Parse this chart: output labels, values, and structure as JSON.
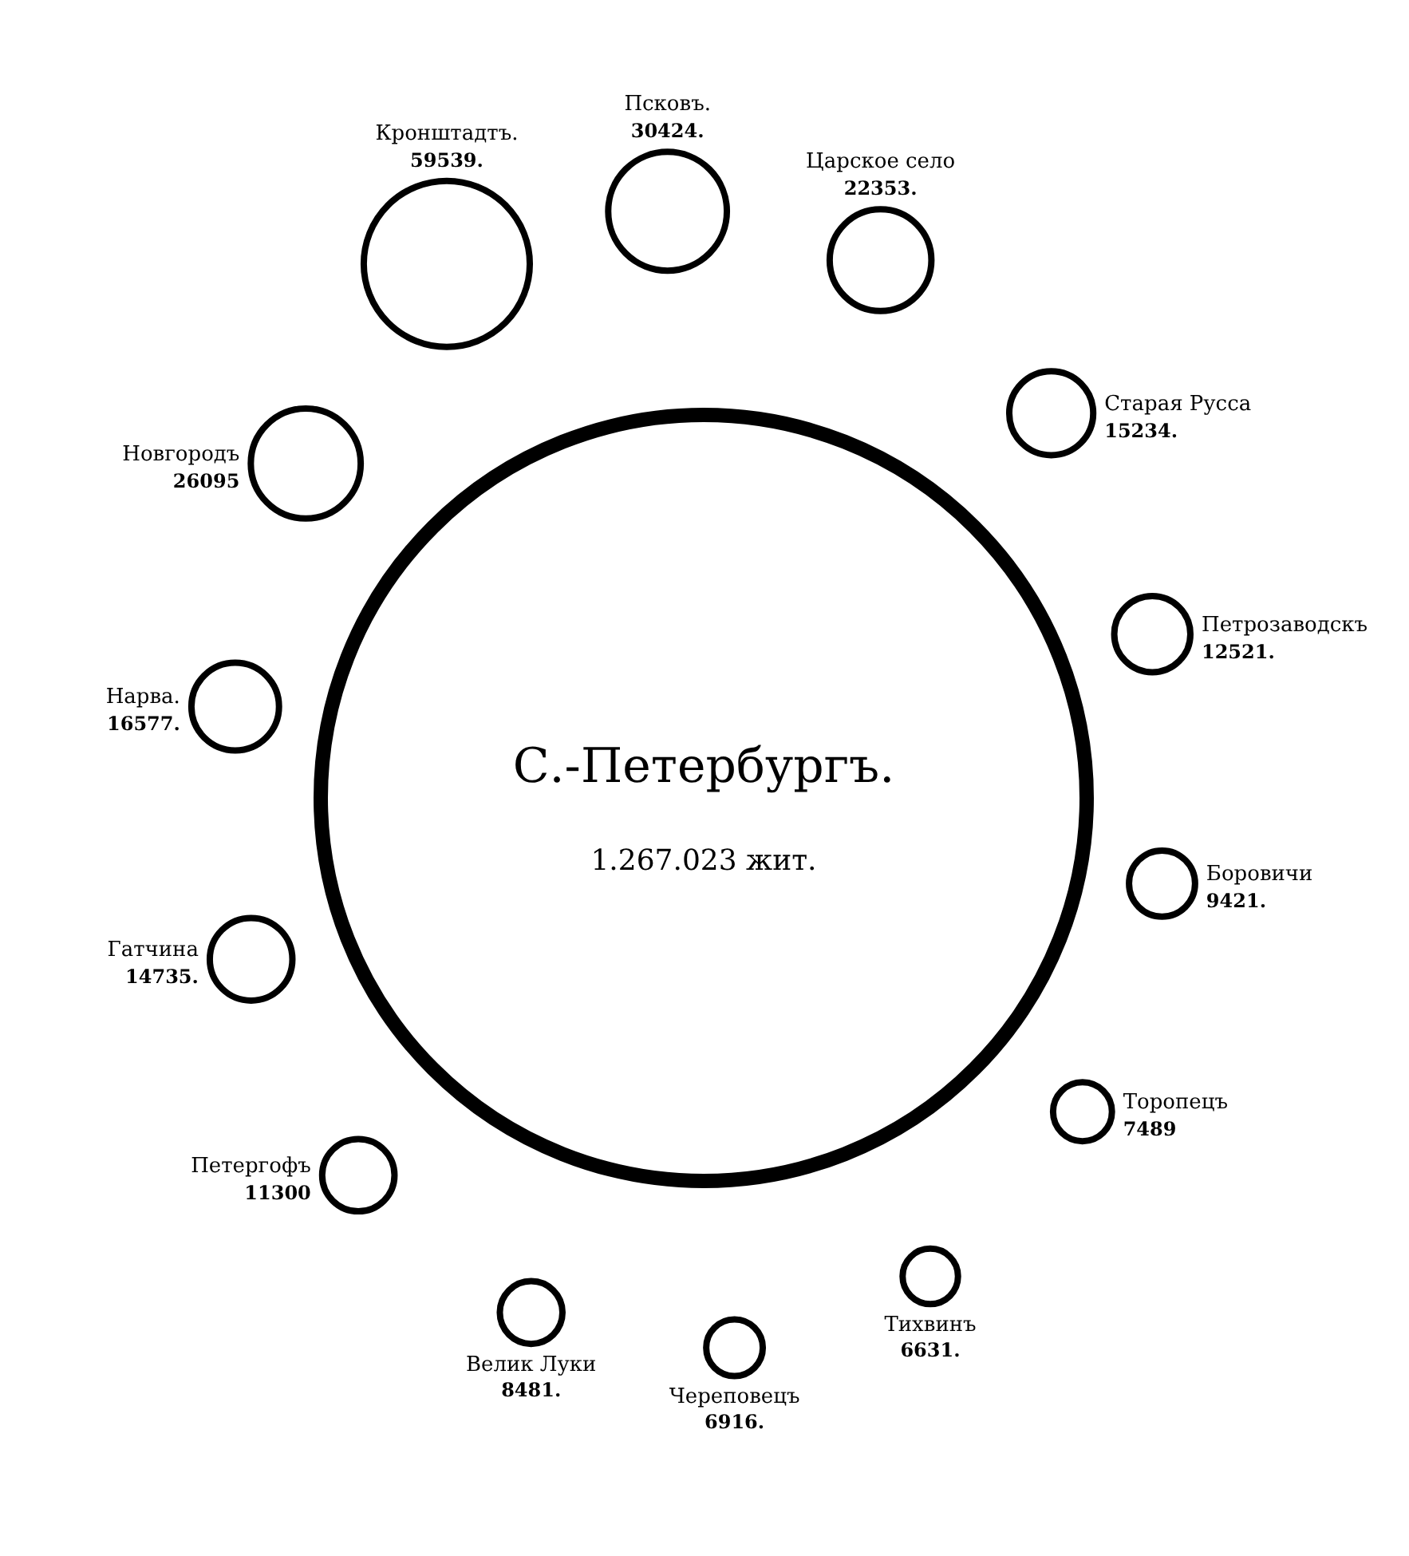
{
  "chart_data": {
    "type": "other",
    "color": "#000000",
    "categories": [
      "С.-Петербургъ.",
      "Кронштадтъ.",
      "Псковъ.",
      "Царское село",
      "Старая Русса",
      "Петрозаводскъ",
      "Боровичи",
      "Торопецъ",
      "Тихвинъ",
      "Череповецъ",
      "Велик Луки",
      "Петергофъ",
      "Гатчина",
      "Нарва.",
      "Новгородъ"
    ],
    "values": [
      1267023,
      59539,
      30424,
      22353,
      15234,
      12521,
      9421,
      7489,
      6631,
      6916,
      8481,
      11300,
      14735,
      16577,
      26095
    ],
    "value_labels": [
      "1.267.023 жит.",
      "59539.",
      "30424.",
      "22353.",
      "15234.",
      "12521.",
      "9421.",
      "7489",
      "6631.",
      "6916.",
      "8481.",
      "11300",
      "14735.",
      "16577.",
      "26095"
    ]
  }
}
